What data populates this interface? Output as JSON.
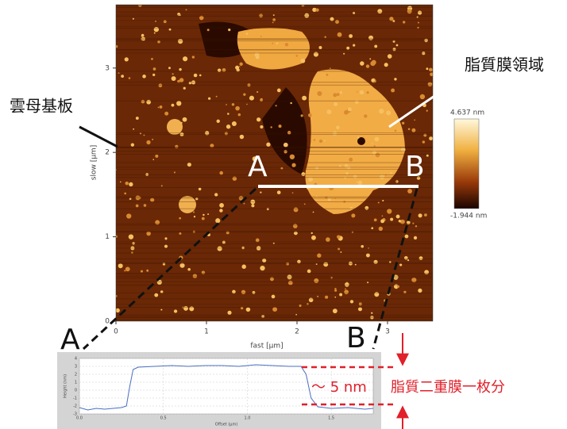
{
  "annotations": {
    "substrate": "雲母基板",
    "membrane": "脂質膜領域",
    "point_a": "A",
    "point_b": "B",
    "profile_a": "A",
    "profile_b": "B",
    "height": "～ 5 nm",
    "bilayer": "脂質二重膜一枚分"
  },
  "afm_image": {
    "x_label": "fast [µm]",
    "y_label": "slow [µm]",
    "xlim": [
      0,
      3.5
    ],
    "xticks": [
      0,
      1,
      2,
      3
    ],
    "ylim": [
      0,
      3.75
    ],
    "yticks": [
      0,
      1,
      2,
      3
    ],
    "colorbar_labels": [
      "4.637 nm",
      "-1.944 nm"
    ]
  },
  "chart_data": {
    "type": "line",
    "x_label": "Offset (µm)",
    "y_label": "Height (nm)",
    "x": [
      0,
      0.05,
      0.1,
      0.15,
      0.2,
      0.25,
      0.28,
      0.3,
      0.32,
      0.35,
      0.45,
      0.55,
      0.65,
      0.75,
      0.85,
      0.95,
      1.05,
      1.15,
      1.25,
      1.32,
      1.35,
      1.38,
      1.42,
      1.5,
      1.6,
      1.7,
      1.75
    ],
    "series": [
      {
        "color": "#4a6fc0",
        "values": [
          -2.2,
          -2.5,
          -2.3,
          -2.4,
          -2.3,
          -2.2,
          -2.0,
          0.5,
          2.6,
          2.9,
          3.0,
          3.1,
          3.0,
          3.1,
          3.1,
          3.0,
          3.2,
          3.1,
          3.0,
          3.0,
          2.0,
          -1.0,
          -2.1,
          -2.3,
          -2.2,
          -2.4,
          -2.3
        ]
      }
    ],
    "xlim": [
      0,
      1.75
    ],
    "xticks": [
      {
        "value": 0,
        "label": "0.0"
      },
      {
        "value": 0.5,
        "label": "0.5"
      },
      {
        "value": 1,
        "label": "1.0"
      },
      {
        "value": 1.5,
        "label": "1.5"
      }
    ],
    "ylim": [
      -3,
      4
    ],
    "yticks": [
      4,
      3,
      2,
      1,
      0,
      -1,
      -2,
      -3
    ],
    "grid": true
  }
}
